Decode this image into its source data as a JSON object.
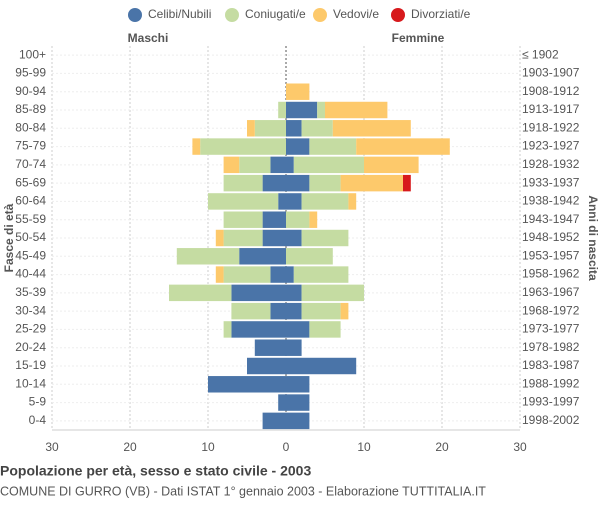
{
  "chart_data": {
    "type": "pyramid",
    "title": "Popolazione per età, sesso e stato civile - 2003",
    "subtitle": "COMUNE DI GURRO (VB) - Dati ISTAT 1° gennaio 2003 - Elaborazione TUTTITALIA.IT",
    "left_label": "Maschi",
    "right_label": "Femmine",
    "y_label": "Fasce di età",
    "y2_label": "Anni di nascita",
    "categories": [
      "100+",
      "95-99",
      "90-94",
      "85-89",
      "80-84",
      "75-79",
      "70-74",
      "65-69",
      "60-64",
      "55-59",
      "50-54",
      "45-49",
      "40-44",
      "35-39",
      "30-34",
      "25-29",
      "20-24",
      "15-19",
      "10-14",
      "5-9",
      "0-4"
    ],
    "birth_years": [
      "≤ 1902",
      "1903-1907",
      "1908-1912",
      "1913-1917",
      "1918-1922",
      "1923-1927",
      "1928-1932",
      "1933-1937",
      "1938-1942",
      "1943-1947",
      "1948-1952",
      "1953-1957",
      "1958-1962",
      "1963-1967",
      "1968-1972",
      "1973-1977",
      "1978-1982",
      "1983-1987",
      "1988-1992",
      "1993-1997",
      "1998-2002"
    ],
    "series": [
      {
        "name": "Celibi/Nubili",
        "color": "#4a74a8",
        "male": [
          0,
          0,
          0,
          0,
          0,
          0,
          2,
          3,
          1,
          3,
          3,
          6,
          2,
          7,
          2,
          7,
          4,
          5,
          10,
          1,
          3
        ],
        "female": [
          0,
          0,
          0,
          4,
          2,
          3,
          1,
          3,
          2,
          0,
          2,
          0,
          1,
          2,
          2,
          3,
          2,
          9,
          3,
          3,
          3
        ]
      },
      {
        "name": "Coniugati/e",
        "color": "#c5dca2",
        "male": [
          0,
          0,
          0,
          1,
          4,
          11,
          4,
          5,
          9,
          5,
          5,
          8,
          6,
          8,
          5,
          1,
          0,
          0,
          0,
          0,
          0
        ],
        "female": [
          0,
          0,
          0,
          1,
          4,
          6,
          9,
          4,
          6,
          3,
          6,
          6,
          7,
          8,
          5,
          4,
          0,
          0,
          0,
          0,
          0
        ]
      },
      {
        "name": "Vedovi/e",
        "color": "#fdc96b",
        "male": [
          0,
          0,
          0,
          0,
          1,
          1,
          2,
          0,
          0,
          0,
          1,
          0,
          1,
          0,
          0,
          0,
          0,
          0,
          0,
          0,
          0
        ],
        "female": [
          0,
          0,
          3,
          8,
          10,
          12,
          7,
          8,
          1,
          1,
          0,
          0,
          0,
          0,
          1,
          0,
          0,
          0,
          0,
          0,
          0
        ]
      },
      {
        "name": "Divorziati/e",
        "color": "#d7191c",
        "male": [
          0,
          0,
          0,
          0,
          0,
          0,
          0,
          0,
          0,
          0,
          0,
          0,
          0,
          0,
          0,
          0,
          0,
          0,
          0,
          0,
          0
        ],
        "female": [
          0,
          0,
          0,
          0,
          0,
          0,
          0,
          1,
          0,
          0,
          0,
          0,
          0,
          0,
          0,
          0,
          0,
          0,
          0,
          0,
          0
        ]
      }
    ],
    "xlim": [
      -30,
      30
    ],
    "xticks": [
      {
        "value": -30,
        "label": "30"
      },
      {
        "value": -20,
        "label": "20"
      },
      {
        "value": -10,
        "label": "10"
      },
      0,
      10,
      20,
      30
    ],
    "grid": true
  }
}
